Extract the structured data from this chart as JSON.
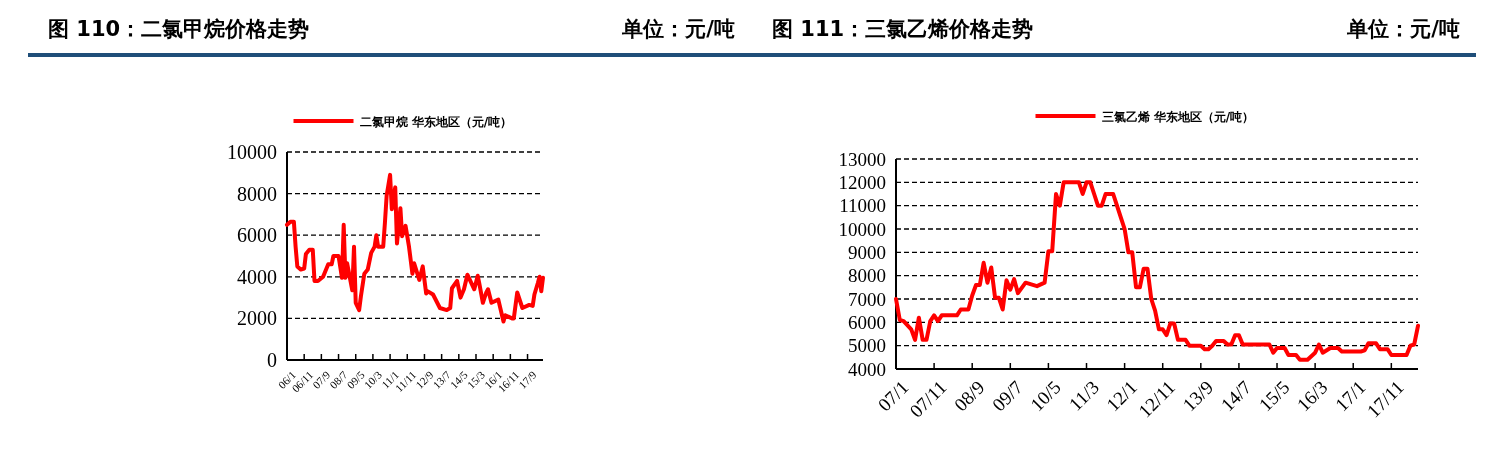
{
  "chart_data": [
    {
      "type": "line",
      "title": "图 110：二氯甲烷价格走势",
      "annotations": [
        "单位：元/吨"
      ],
      "x": [
        "2006-01",
        "2006-03",
        "2006-05",
        "2006-06",
        "2006-07",
        "2006-09",
        "2006-11",
        "2006-12",
        "2007-02",
        "2007-04",
        "2007-05",
        "2007-07",
        "2007-10",
        "2008-01",
        "2008-03",
        "2008-04",
        "2008-07",
        "2008-09",
        "2008-10",
        "2008-11",
        "2008-12",
        "2009-03",
        "2009-04",
        "2009-05",
        "2009-07",
        "2009-08",
        "2009-10",
        "2009-12",
        "2010-02",
        "2010-04",
        "2010-05",
        "2010-06",
        "2010-09",
        "2010-10",
        "2010-11",
        "2011-01",
        "2011-02",
        "2011-04",
        "2011-05",
        "2011-07",
        "2011-08",
        "2011-10",
        "2011-12",
        "2012-02",
        "2012-03",
        "2012-06",
        "2012-08",
        "2012-10",
        "2012-11",
        "2013-02",
        "2013-06",
        "2013-10",
        "2013-12",
        "2014-01",
        "2014-04",
        "2014-06",
        "2014-08",
        "2014-10",
        "2015-02",
        "2015-04",
        "2015-05",
        "2015-07",
        "2015-09",
        "2015-10",
        "2015-12",
        "2016-04",
        "2016-07",
        "2016-08",
        "2016-12",
        "2017-01",
        "2017-03",
        "2017-06",
        "2017-10",
        "2017-12",
        "2018-01",
        "2018-03",
        "2018-04",
        "2018-05",
        "2018-06"
      ],
      "series": [
        {
          "name": "二氯甲烷 华东地区（元/吨）",
          "color": "#ff0000",
          "values": [
            6500,
            6650,
            6650,
            5450,
            4500,
            4350,
            4400,
            5100,
            5300,
            5300,
            3800,
            3800,
            4000,
            4600,
            4600,
            5000,
            5000,
            3950,
            6500,
            3950,
            4650,
            3350,
            5450,
            2750,
            2400,
            3050,
            4150,
            4350,
            5150,
            5450,
            6000,
            5450,
            5450,
            6600,
            7900,
            8900,
            7250,
            8300,
            5600,
            7300,
            5950,
            6450,
            5450,
            4150,
            4650,
            3850,
            4500,
            3200,
            3300,
            3150,
            2500,
            2400,
            2500,
            3450,
            3800,
            3000,
            3400,
            4100,
            3400,
            4050,
            3650,
            2750,
            3250,
            3400,
            2750,
            2900,
            1850,
            2150,
            2000,
            2000,
            3250,
            2500,
            2650,
            2600,
            3150,
            3700,
            4000,
            3300,
            3950
          ]
        }
      ],
      "xlim": [
        "2006-01",
        "2018-06"
      ],
      "xticks": [
        {
          "value": "2006-01",
          "label": "06/1"
        },
        {
          "value": "2006-11",
          "label": "06/11"
        },
        {
          "value": "2007-09",
          "label": "07/9"
        },
        {
          "value": "2008-07",
          "label": "08/7"
        },
        {
          "value": "2009-05",
          "label": "09/5"
        },
        {
          "value": "2010-03",
          "label": "10/3"
        },
        {
          "value": "2011-01",
          "label": "11/1"
        },
        {
          "value": "2011-11",
          "label": "11/11"
        },
        {
          "value": "2012-09",
          "label": "12/9"
        },
        {
          "value": "2013-07",
          "label": "13/7"
        },
        {
          "value": "2014-05",
          "label": "14/5"
        },
        {
          "value": "2015-03",
          "label": "15/3"
        },
        {
          "value": "2016-01",
          "label": "16/1"
        },
        {
          "value": "2016-11",
          "label": "16/11"
        },
        {
          "value": "2017-09",
          "label": "17/9"
        }
      ],
      "ylim": [
        0,
        10000
      ],
      "yticks": [
        0,
        2000,
        4000,
        6000,
        8000,
        10000
      ],
      "grid": "y",
      "legend": "top"
    },
    {
      "type": "line",
      "title": "图 111：三氯乙烯价格走势",
      "annotations": [
        "单位：元/吨"
      ],
      "x": [
        "2007-01",
        "2007-02",
        "2007-03",
        "2007-05",
        "2007-06",
        "2007-07",
        "2007-08",
        "2007-09",
        "2007-10",
        "2007-11",
        "2007-12",
        "2008-01",
        "2008-05",
        "2008-06",
        "2008-08",
        "2008-09",
        "2008-10",
        "2008-11",
        "2008-12",
        "2009-01",
        "2009-02",
        "2009-03",
        "2009-04",
        "2009-05",
        "2009-06",
        "2009-07",
        "2009-08",
        "2009-09",
        "2009-11",
        "2010-02",
        "2010-04",
        "2010-05",
        "2010-06",
        "2010-07",
        "2010-08",
        "2010-09",
        "2011-01",
        "2011-02",
        "2011-03",
        "2011-04",
        "2011-05",
        "2011-06",
        "2011-07",
        "2011-08",
        "2011-10",
        "2011-11",
        "2011-12",
        "2012-01",
        "2012-02",
        "2012-03",
        "2012-04",
        "2012-05",
        "2012-06",
        "2012-07",
        "2012-08",
        "2012-09",
        "2012-10",
        "2012-11",
        "2012-12",
        "2013-01",
        "2013-02",
        "2013-03",
        "2013-05",
        "2013-06",
        "2013-09",
        "2013-10",
        "2013-11",
        "2013-12",
        "2014-01",
        "2014-03",
        "2014-04",
        "2014-05",
        "2014-06",
        "2014-07",
        "2014-08",
        "2015-03",
        "2015-04",
        "2015-05",
        "2015-07",
        "2015-08",
        "2015-10",
        "2015-11",
        "2016-01",
        "2016-03",
        "2016-04",
        "2016-05",
        "2016-07",
        "2016-09",
        "2016-10",
        "2017-03",
        "2017-04",
        "2017-05",
        "2017-07",
        "2017-08",
        "2017-10",
        "2017-11",
        "2018-03",
        "2018-04",
        "2018-05",
        "2018-06"
      ],
      "series": [
        {
          "name": "三氯乙烯 华东地区（元/吨）",
          "color": "#ff0000",
          "values": [
            7000,
            6100,
            6050,
            5700,
            5250,
            6200,
            5250,
            5250,
            6050,
            6300,
            6050,
            6300,
            6300,
            6550,
            6550,
            7150,
            7600,
            7600,
            8550,
            7700,
            8350,
            7050,
            7050,
            6550,
            7800,
            7400,
            7850,
            7250,
            7700,
            7550,
            7700,
            9050,
            9050,
            11500,
            11000,
            12000,
            12000,
            11500,
            12000,
            12000,
            11500,
            11000,
            11000,
            11500,
            11500,
            11000,
            10500,
            10000,
            9000,
            9000,
            7500,
            7500,
            8300,
            8300,
            7000,
            6500,
            5700,
            5700,
            5450,
            5950,
            5950,
            5250,
            5250,
            5000,
            5000,
            4850,
            4850,
            5000,
            5200,
            5200,
            5050,
            5050,
            5450,
            5450,
            5050,
            5050,
            4700,
            4900,
            4900,
            4600,
            4600,
            4400,
            4400,
            4700,
            5050,
            4700,
            4900,
            4900,
            4750,
            4750,
            4800,
            5100,
            5100,
            4850,
            4850,
            4600,
            4600,
            5000,
            5050,
            5850
          ]
        }
      ],
      "xlim": [
        "2007-01",
        "2018-06"
      ],
      "xticks": [
        {
          "value": "2007-01",
          "label": "07/1"
        },
        {
          "value": "2007-11",
          "label": "07/11"
        },
        {
          "value": "2008-09",
          "label": "08/9"
        },
        {
          "value": "2009-07",
          "label": "09/7"
        },
        {
          "value": "2010-05",
          "label": "10/5"
        },
        {
          "value": "2011-03",
          "label": "11/3"
        },
        {
          "value": "2012-01",
          "label": "12/1"
        },
        {
          "value": "2012-11",
          "label": "12/11"
        },
        {
          "value": "2013-09",
          "label": "13/9"
        },
        {
          "value": "2014-07",
          "label": "14/7"
        },
        {
          "value": "2015-05",
          "label": "15/5"
        },
        {
          "value": "2016-03",
          "label": "16/3"
        },
        {
          "value": "2017-01",
          "label": "17/1"
        },
        {
          "value": "2017-11",
          "label": "17/11"
        }
      ],
      "ylim": [
        4000,
        13000
      ],
      "yticks": [
        4000,
        5000,
        6000,
        7000,
        8000,
        9000,
        10000,
        11000,
        12000,
        13000
      ],
      "grid": "y",
      "legend": "top"
    }
  ]
}
